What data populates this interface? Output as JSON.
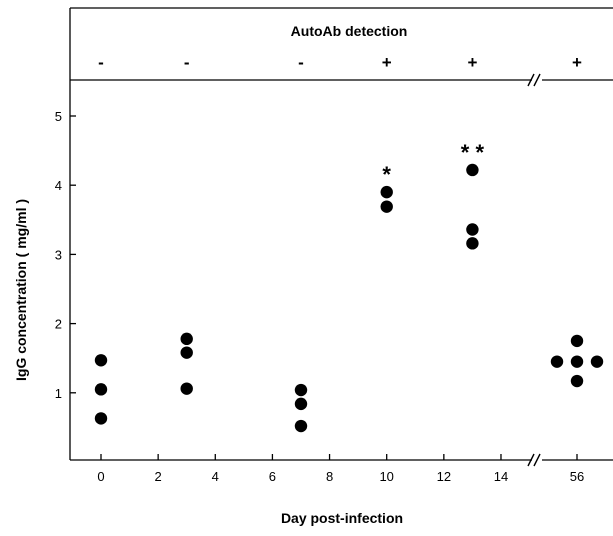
{
  "chart_data": {
    "type": "scatter",
    "title": "",
    "xlabel": "Day post-infection",
    "ylabel": "IgG concentration ( mg/ml )",
    "ylim": [
      0,
      5.5
    ],
    "y_ticks": [
      "1",
      "2",
      "3",
      "4",
      "5"
    ],
    "x_ticks": [
      "0",
      "2",
      "4",
      "6",
      "8",
      "10",
      "12",
      "14",
      "56"
    ],
    "x_axis_break": "between 14 and 56",
    "grid": false,
    "legend": "none",
    "header": {
      "title": "AutoAb detection",
      "entries": [
        {
          "day": 0,
          "sign": "-"
        },
        {
          "day": 3,
          "sign": "-"
        },
        {
          "day": 7,
          "sign": "-"
        },
        {
          "day": 10,
          "sign": "+"
        },
        {
          "day": 13,
          "sign": "+"
        },
        {
          "day": 56,
          "sign": "+"
        }
      ]
    },
    "points": [
      {
        "x": 0,
        "y": 1.47
      },
      {
        "x": 0,
        "y": 1.05
      },
      {
        "x": 0,
        "y": 0.63
      },
      {
        "x": 3,
        "y": 1.78
      },
      {
        "x": 3,
        "y": 1.58
      },
      {
        "x": 3,
        "y": 1.06
      },
      {
        "x": 7,
        "y": 1.04
      },
      {
        "x": 7,
        "y": 0.84
      },
      {
        "x": 7,
        "y": 0.52
      },
      {
        "x": 10,
        "y": 3.9
      },
      {
        "x": 10,
        "y": 3.69
      },
      {
        "x": 13,
        "y": 4.22
      },
      {
        "x": 13,
        "y": 3.36
      },
      {
        "x": 13,
        "y": 3.16
      },
      {
        "x": 56,
        "y": 1.75
      },
      {
        "x": 56,
        "y": 1.45
      },
      {
        "x": 56,
        "y": 1.45
      },
      {
        "x": 56,
        "y": 1.45
      },
      {
        "x": 56,
        "y": 1.17
      }
    ],
    "annotations": [
      {
        "x": 10,
        "text": "*"
      },
      {
        "x": 13,
        "text": "* *"
      }
    ],
    "marker_color": "#000000"
  }
}
